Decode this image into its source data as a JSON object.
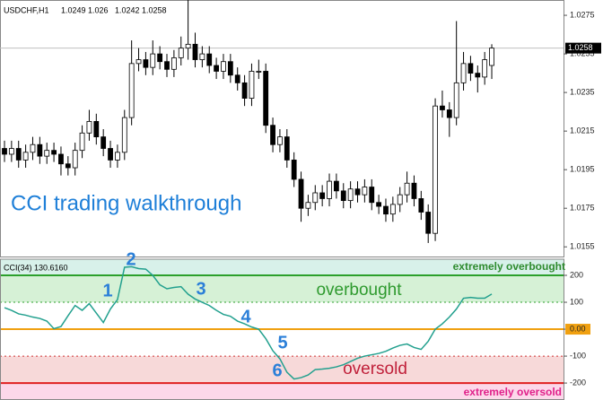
{
  "chart_data": [
    {
      "type": "candlestick",
      "title": "USDCHF,H1",
      "annotation": "CCI trading walkthrough",
      "annotation_color": "#1e7fd8",
      "up_color": "#ffffff",
      "down_color": "#000000",
      "outline_color": "#000000",
      "price_line_color": "#c0c0c0",
      "open": [
        1.0206,
        1.0203,
        1.0206,
        1.02,
        1.0204,
        1.0208,
        1.0202,
        1.0205,
        1.0203,
        1.0198,
        1.0196,
        1.0205,
        1.0214,
        1.022,
        1.0212,
        1.0206,
        1.02,
        1.0204,
        1.0222,
        1.025,
        1.0252,
        1.0248,
        1.0255,
        1.0251,
        1.0247,
        1.0253,
        1.0258,
        1.026,
        1.0252,
        1.0255,
        1.0249,
        1.0246,
        1.0251,
        1.0244,
        1.024,
        1.0232,
        1.0246,
        1.0246,
        1.0218,
        1.0208,
        1.0212,
        1.02,
        1.019,
        1.0175,
        1.0178,
        1.0183,
        1.018,
        1.0189,
        1.0184,
        1.0179,
        1.0185,
        1.0182,
        1.0186,
        1.0178,
        1.0176,
        1.0172,
        1.0177,
        1.0182,
        1.0188,
        1.018,
        1.0173,
        1.0162,
        1.0228,
        1.0226,
        1.0222,
        1.024,
        1.025,
        1.0245,
        1.0243,
        1.0249
      ],
      "high": [
        1.021,
        1.021,
        1.021,
        1.0208,
        1.0212,
        1.0212,
        1.0209,
        1.0209,
        1.0207,
        1.0202,
        1.0209,
        1.0218,
        1.0226,
        1.0224,
        1.0216,
        1.021,
        1.0208,
        1.0226,
        1.0262,
        1.0258,
        1.0256,
        1.0262,
        1.0259,
        1.0255,
        1.0257,
        1.0264,
        1.0285,
        1.0266,
        1.0259,
        1.0259,
        1.0253,
        1.0255,
        1.0255,
        1.0248,
        1.0244,
        1.025,
        1.0252,
        1.025,
        1.0222,
        1.0216,
        1.0216,
        1.0204,
        1.0194,
        1.0182,
        1.0187,
        1.0187,
        1.0193,
        1.0193,
        1.0188,
        1.0189,
        1.0189,
        1.019,
        1.019,
        1.0182,
        1.018,
        1.0181,
        1.0186,
        1.0194,
        1.0192,
        1.0184,
        1.0177,
        1.0232,
        1.0236,
        1.023,
        1.0272,
        1.0256,
        1.0254,
        1.0249,
        1.0256,
        1.026
      ],
      "low": [
        1.0199,
        1.0199,
        1.0196,
        1.0196,
        1.02,
        1.0198,
        1.0198,
        1.0199,
        1.0192,
        1.0192,
        1.0192,
        1.0201,
        1.021,
        1.0208,
        1.0202,
        1.0196,
        1.0196,
        1.02,
        1.0218,
        1.0246,
        1.0244,
        1.0244,
        1.0247,
        1.0243,
        1.0243,
        1.0249,
        1.0252,
        1.0248,
        1.0248,
        1.0245,
        1.0242,
        1.0242,
        1.024,
        1.0236,
        1.0228,
        1.0228,
        1.0242,
        1.0214,
        1.0204,
        1.0204,
        1.0196,
        1.0186,
        1.0168,
        1.0171,
        1.0174,
        1.0176,
        1.0176,
        1.018,
        1.0175,
        1.0175,
        1.0178,
        1.0178,
        1.0174,
        1.0172,
        1.0168,
        1.0168,
        1.0173,
        1.0178,
        1.0176,
        1.0169,
        1.0157,
        1.0158,
        1.0222,
        1.0212,
        1.0218,
        1.0236,
        1.0241,
        1.0235,
        1.0239,
        1.0242
      ],
      "close": [
        1.0203,
        1.0206,
        1.02,
        1.0204,
        1.0208,
        1.0202,
        1.0205,
        1.0203,
        1.0198,
        1.0196,
        1.0205,
        1.0214,
        1.022,
        1.0212,
        1.0206,
        1.02,
        1.0204,
        1.0222,
        1.025,
        1.0252,
        1.0248,
        1.0255,
        1.0251,
        1.0247,
        1.0253,
        1.0258,
        1.026,
        1.0252,
        1.0255,
        1.0249,
        1.0246,
        1.0251,
        1.0244,
        1.024,
        1.0232,
        1.0246,
        1.0246,
        1.0218,
        1.0208,
        1.0212,
        1.02,
        1.019,
        1.0175,
        1.0178,
        1.0183,
        1.018,
        1.0189,
        1.0184,
        1.0179,
        1.0185,
        1.0182,
        1.0186,
        1.0178,
        1.0176,
        1.0172,
        1.0177,
        1.0182,
        1.0188,
        1.018,
        1.0173,
        1.0162,
        1.0228,
        1.0226,
        1.0222,
        1.024,
        1.025,
        1.0245,
        1.0243,
        1.0252,
        1.0258
      ],
      "ylim": [
        1.015,
        1.0282
      ],
      "yticks": [
        1.0275,
        1.0255,
        1.0235,
        1.0215,
        1.0195,
        1.0175,
        1.0155
      ]
    },
    {
      "type": "line",
      "title": "CCI(34) 130.6160",
      "color": "#22a08e",
      "values": [
        80,
        70,
        57,
        52,
        45,
        40,
        30,
        2,
        10,
        50,
        88,
        70,
        95,
        60,
        25,
        75,
        110,
        230,
        232,
        225,
        223,
        200,
        165,
        150,
        155,
        158,
        130,
        112,
        100,
        88,
        70,
        55,
        48,
        30,
        20,
        8,
        0,
        -35,
        -80,
        -110,
        -160,
        -185,
        -180,
        -170,
        -150,
        -148,
        -145,
        -140,
        -132,
        -120,
        -108,
        -100,
        -95,
        -90,
        -82,
        -70,
        -60,
        -55,
        -68,
        -75,
        -45,
        0,
        20,
        45,
        75,
        115,
        118,
        115,
        115,
        130.616
      ],
      "ylim": [
        -263,
        260
      ],
      "yticks": [
        200,
        100,
        {
          "value": 0,
          "label": "0.00"
        },
        -100,
        -200
      ],
      "levels": [
        {
          "value": 200,
          "color": "#2ca02c",
          "style": "solid"
        },
        {
          "value": 100,
          "color": "#2ca02c",
          "style": "dotted"
        },
        {
          "value": 0,
          "color": "#f0a010",
          "style": "solid"
        },
        {
          "value": -100,
          "color": "#d03030",
          "style": "dotted"
        },
        {
          "value": -200,
          "color": "#e02020",
          "style": "solid"
        }
      ],
      "bands": [
        {
          "label": "extremely overbought",
          "from": 200,
          "color": "#d8f1ea",
          "label_color": "#2e8b2e"
        },
        {
          "label": "overbought",
          "from": 100,
          "to": 200,
          "color": "#d6f1d6",
          "label_color": "#2e9a2e"
        },
        {
          "label": "oversold",
          "from": -200,
          "to": -100,
          "color": "#f7d9d9",
          "label_color": "#c0203a"
        },
        {
          "label": "extremely oversold",
          "to": -200,
          "color": "#fcd8ea",
          "label_color": "#e0208a"
        }
      ],
      "annotations": [
        "1",
        "2",
        "3",
        "4",
        "5",
        "6"
      ],
      "annotation_color": "#2b7fd8"
    }
  ]
}
